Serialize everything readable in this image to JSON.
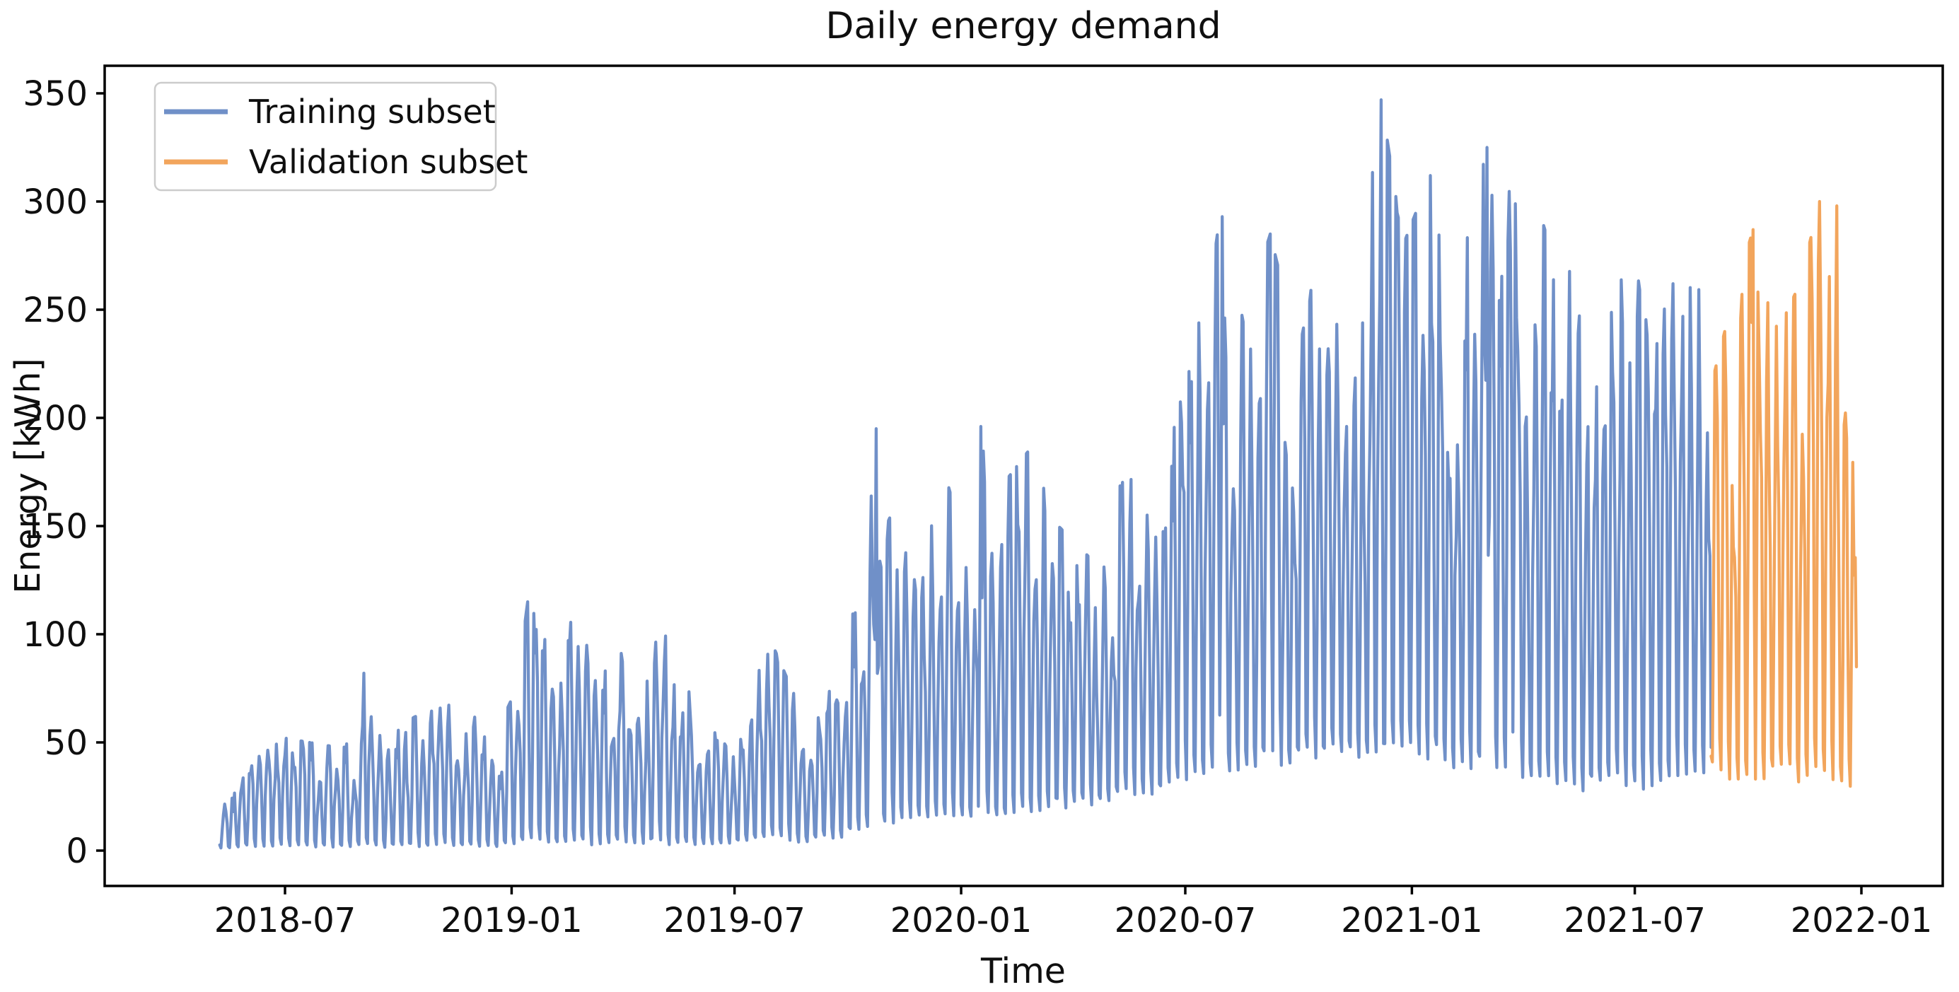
{
  "figure": {
    "background": "#ffffff",
    "text_color": "#0f0f0f"
  },
  "chart_data": {
    "type": "line",
    "title": "Daily energy demand",
    "xlabel": "Time",
    "ylabel": "Energy [kWh]",
    "grid": false,
    "ylim": [
      -17,
      363
    ],
    "yticks": [
      0,
      50,
      100,
      150,
      200,
      250,
      300,
      350
    ],
    "xtick_labels": [
      "2018-07",
      "2019-01",
      "2019-07",
      "2020-01",
      "2020-07",
      "2021-01",
      "2021-07",
      "2022-01"
    ],
    "x_range": [
      "2018-05-09",
      "2021-12-28"
    ],
    "axis": {
      "color": "#000000",
      "tick_length": 12
    },
    "legend": {
      "position": "upper left",
      "border_color": "#cccccc",
      "entries": [
        {
          "label": "Training subset",
          "color": "#7090C8"
        },
        {
          "label": "Validation subset",
          "color": "#F2A55C"
        }
      ]
    },
    "series": [
      {
        "name": "Training subset",
        "color": "#7090C8",
        "start": "2018-05-09",
        "end": "2021-09-01",
        "pattern": "daily values, weekly spike cycle with near-zero troughs, rising trend",
        "envelope": [
          [
            "2018-05-09",
            28,
            0
          ],
          [
            "2018-06-01",
            40,
            0
          ],
          [
            "2018-07-01",
            52,
            0
          ],
          [
            "2018-08-10",
            48,
            0
          ],
          [
            "2018-08-25",
            50,
            0
          ],
          [
            "2018-09-03",
            82,
            0
          ],
          [
            "2018-09-12",
            52,
            0
          ],
          [
            "2018-10-15",
            62,
            0
          ],
          [
            "2018-11-15",
            68,
            0
          ],
          [
            "2018-12-20",
            55,
            0
          ],
          [
            "2019-01-05",
            75,
            0
          ],
          [
            "2019-01-14",
            115,
            0
          ],
          [
            "2019-01-28",
            100,
            0
          ],
          [
            "2019-02-15",
            108,
            0
          ],
          [
            "2019-03-15",
            85,
            0
          ],
          [
            "2019-04-10",
            95,
            0
          ],
          [
            "2019-05-05",
            100,
            0
          ],
          [
            "2019-06-01",
            78,
            0
          ],
          [
            "2019-07-01",
            62,
            2
          ],
          [
            "2019-08-01",
            95,
            2
          ],
          [
            "2019-08-20",
            70,
            2
          ],
          [
            "2019-09-10",
            60,
            3
          ],
          [
            "2019-10-01",
            110,
            4
          ],
          [
            "2019-10-15",
            125,
            5
          ],
          [
            "2019-10-24",
            195,
            5
          ],
          [
            "2019-11-05",
            150,
            8
          ],
          [
            "2019-11-20",
            140,
            10
          ],
          [
            "2019-12-10",
            165,
            10
          ],
          [
            "2020-01-01",
            170,
            12
          ],
          [
            "2020-01-17",
            196,
            12
          ],
          [
            "2020-02-05",
            170,
            10
          ],
          [
            "2020-02-25",
            185,
            10
          ],
          [
            "2020-03-20",
            150,
            15
          ],
          [
            "2020-04-15",
            135,
            18
          ],
          [
            "2020-05-10",
            170,
            20
          ],
          [
            "2020-06-05",
            175,
            22
          ],
          [
            "2020-07-01",
            230,
            25
          ],
          [
            "2020-07-31",
            293,
            28
          ],
          [
            "2020-08-20",
            250,
            30
          ],
          [
            "2020-09-08",
            285,
            32
          ],
          [
            "2020-10-01",
            230,
            35
          ],
          [
            "2020-10-20",
            285,
            35
          ],
          [
            "2020-11-10",
            235,
            40
          ],
          [
            "2020-12-07",
            347,
            30
          ],
          [
            "2020-12-25",
            280,
            35
          ],
          [
            "2021-01-16",
            312,
            35
          ],
          [
            "2021-02-08",
            265,
            30
          ],
          [
            "2021-03-03",
            325,
            28
          ],
          [
            "2021-03-26",
            299,
            25
          ],
          [
            "2021-04-20",
            288,
            22
          ],
          [
            "2021-05-15",
            292,
            20
          ],
          [
            "2021-06-10",
            245,
            25
          ],
          [
            "2021-07-05",
            292,
            18
          ],
          [
            "2021-08-01",
            262,
            22
          ],
          [
            "2021-09-01",
            258,
            28
          ]
        ]
      },
      {
        "name": "Validation subset",
        "color": "#F2A55C",
        "start": "2021-09-01",
        "end": "2021-12-28",
        "pattern": "daily values, weekly spike cycle, same amplitude as late training data",
        "envelope": [
          [
            "2021-09-01",
            215,
            30
          ],
          [
            "2021-09-20",
            258,
            25
          ],
          [
            "2021-10-05",
            287,
            22
          ],
          [
            "2021-10-25",
            240,
            28
          ],
          [
            "2021-11-12",
            262,
            24
          ],
          [
            "2021-11-28",
            300,
            28
          ],
          [
            "2021-12-12",
            298,
            24
          ],
          [
            "2021-12-22",
            280,
            22
          ],
          [
            "2021-12-28",
            165,
            20
          ]
        ]
      }
    ],
    "notable_points": [
      {
        "series": "Training subset",
        "date": "2018-09-03",
        "value": 82
      },
      {
        "series": "Training subset",
        "date": "2019-01-14",
        "value": 115
      },
      {
        "series": "Training subset",
        "date": "2019-10-24",
        "value": 195
      },
      {
        "series": "Training subset",
        "date": "2020-01-17",
        "value": 196
      },
      {
        "series": "Training subset",
        "date": "2020-07-31",
        "value": 293
      },
      {
        "series": "Training subset",
        "date": "2020-09-08",
        "value": 285
      },
      {
        "series": "Training subset",
        "date": "2020-12-07",
        "value": 347,
        "note": "series maximum"
      },
      {
        "series": "Training subset",
        "date": "2021-01-16",
        "value": 312
      },
      {
        "series": "Training subset",
        "date": "2021-03-03",
        "value": 325
      },
      {
        "series": "Training subset",
        "date": "2021-03-26",
        "value": 299
      },
      {
        "series": "Validation subset",
        "date": "2021-10-05",
        "value": 287
      },
      {
        "series": "Validation subset",
        "date": "2021-11-28",
        "value": 300,
        "note": "validation maximum"
      },
      {
        "series": "Validation subset",
        "date": "2021-12-12",
        "value": 298
      }
    ]
  }
}
